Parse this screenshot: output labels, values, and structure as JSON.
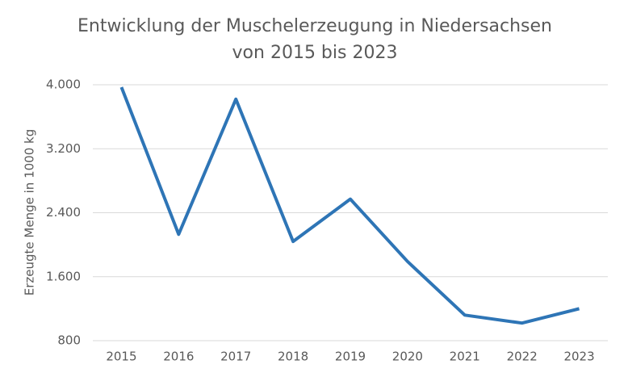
{
  "chart_data": {
    "type": "line",
    "title": [
      "Entwicklung der Muschelerzeugung in Niedersachsen",
      "von 2015 bis 2023"
    ],
    "y_label": "Erzeugte Menge in 1000 kg",
    "categories": [
      "2015",
      "2016",
      "2017",
      "2018",
      "2019",
      "2020",
      "2021",
      "2022",
      "2023"
    ],
    "series": [
      {
        "name": "Erzeugte Menge",
        "color": "#2e75b6",
        "values": [
          3970,
          2130,
          3820,
          2040,
          2570,
          1790,
          1120,
          1020,
          1200
        ]
      }
    ],
    "ylim": [
      800,
      4000
    ],
    "yticks": [
      800,
      {
        "value": 1600,
        "label": "1.600"
      },
      {
        "value": 2400,
        "label": "2.400"
      },
      {
        "value": 3200,
        "label": "3.200"
      },
      {
        "value": 4000,
        "label": "4.000"
      }
    ],
    "grid": true
  }
}
